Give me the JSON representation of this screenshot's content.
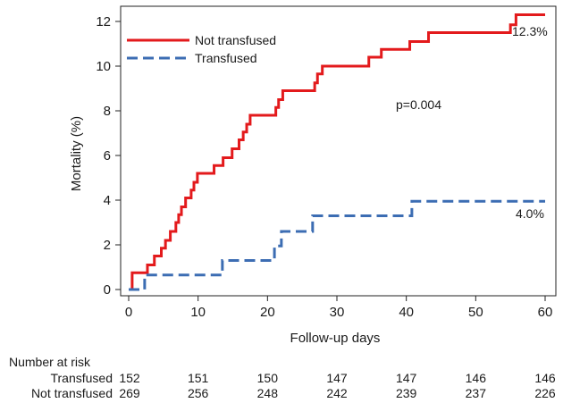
{
  "chart_data": {
    "type": "line",
    "xlabel": "Follow-up days",
    "ylabel": "Mortality (%)",
    "xlim": [
      0,
      60
    ],
    "ylim": [
      0,
      12
    ],
    "xticks": [
      "0",
      "10",
      "20",
      "30",
      "40",
      "50",
      "60"
    ],
    "yticks": [
      "0",
      "2",
      "4",
      "6",
      "8",
      "10",
      "12"
    ],
    "grid": false,
    "legend_position": "top-left",
    "p_value_label": "p=0.004",
    "series": [
      {
        "name": "Not transfused",
        "color": "#e31a1c",
        "style": "solid-step",
        "end_label": "12.3%",
        "x": [
          0.5,
          0.8,
          2.7,
          3.7,
          4.7,
          5.3,
          6.0,
          6.8,
          7.2,
          7.6,
          8.2,
          9.0,
          9.4,
          9.9,
          10.3,
          12.3,
          13.6,
          14.9,
          15.9,
          16.5,
          17.0,
          17.5,
          18.2,
          21.2,
          21.6,
          22.2,
          22.8,
          26.8,
          27.2,
          27.9,
          34.6,
          36.4,
          38.0,
          40.5,
          43.2,
          55.0,
          55.8,
          60.0
        ],
        "y": [
          0.75,
          0.75,
          1.1,
          1.5,
          1.85,
          2.2,
          2.6,
          3.0,
          3.35,
          3.7,
          4.1,
          4.45,
          4.8,
          5.2,
          5.2,
          5.55,
          5.9,
          6.3,
          6.7,
          7.05,
          7.4,
          7.8,
          7.8,
          8.15,
          8.5,
          8.9,
          8.9,
          9.25,
          9.65,
          10.0,
          10.4,
          10.75,
          10.75,
          11.1,
          11.5,
          11.85,
          12.3,
          12.3
        ]
      },
      {
        "name": "Transfused",
        "color": "#3c6db3",
        "style": "dashed-step",
        "end_label": "4.0%",
        "x": [
          2.3,
          13.5,
          21.0,
          22.0,
          22.6,
          26.5,
          40.8,
          60.0
        ],
        "y": [
          0.65,
          1.3,
          1.95,
          2.6,
          2.6,
          3.3,
          3.95,
          3.95
        ]
      }
    ]
  },
  "risk_table": {
    "title": "Number at risk",
    "rows": [
      {
        "label": "Transfused",
        "values": [
          "152",
          "151",
          "150",
          "147",
          "147",
          "146",
          "146"
        ]
      },
      {
        "label": "Not transfused",
        "values": [
          "269",
          "256",
          "248",
          "242",
          "239",
          "237",
          "226"
        ]
      }
    ]
  }
}
